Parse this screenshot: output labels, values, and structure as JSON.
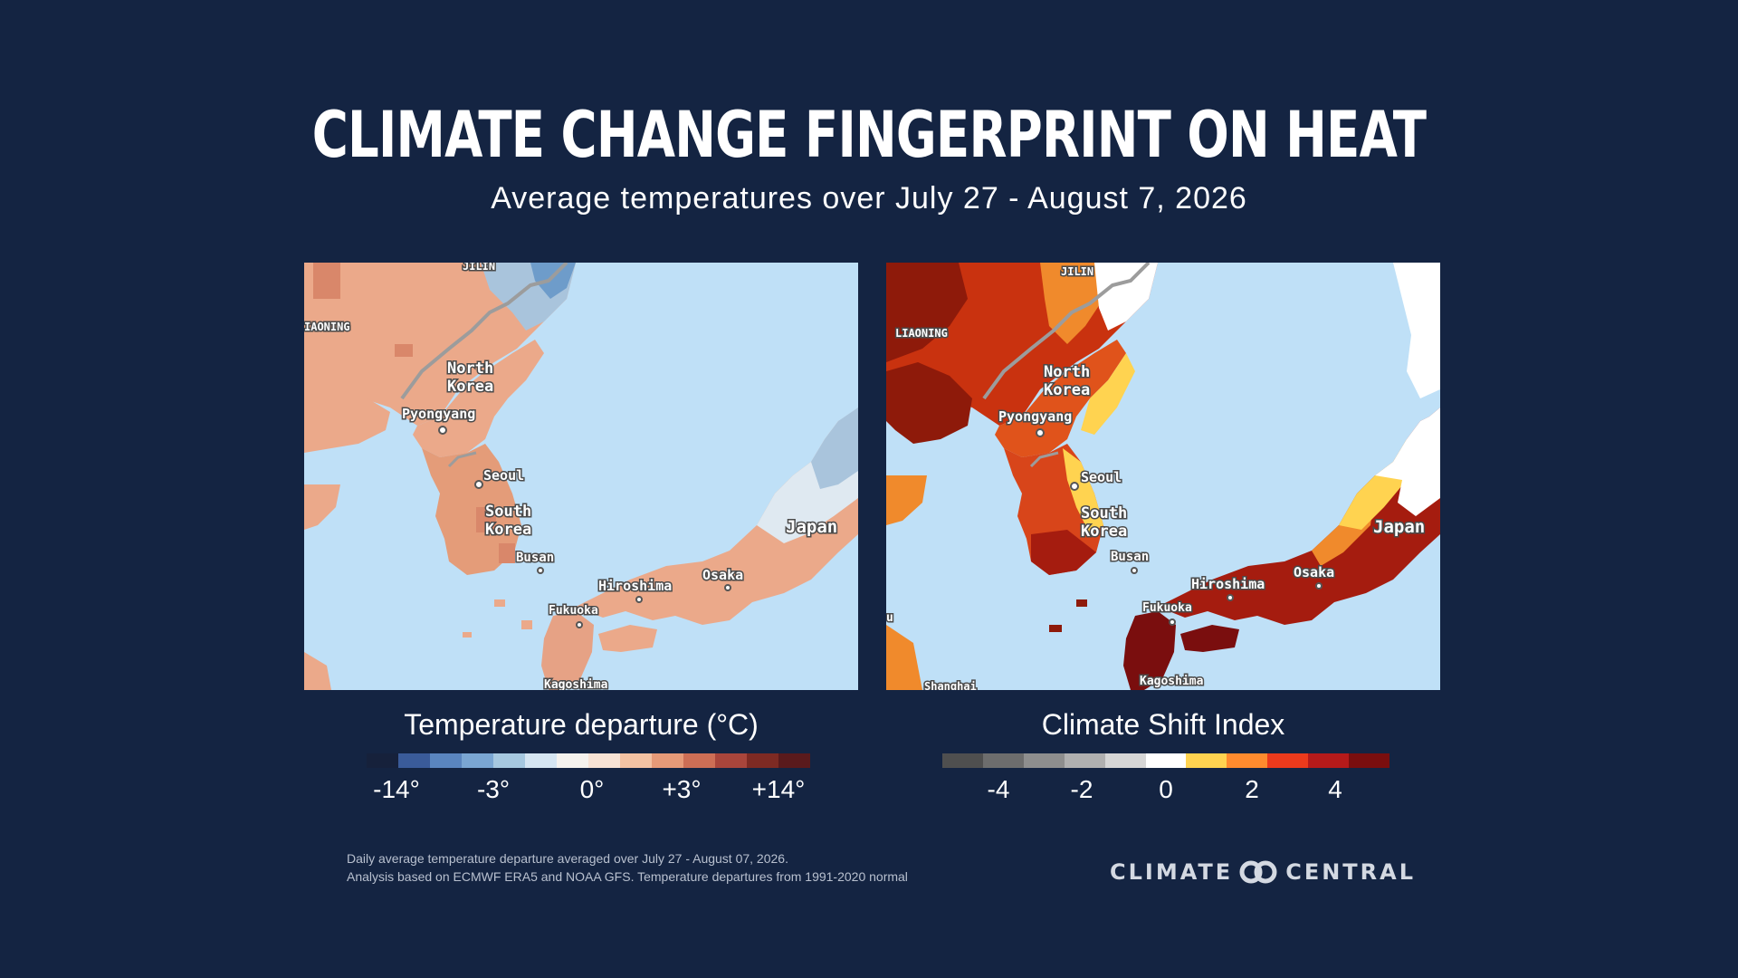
{
  "header": {
    "title": "CLIMATE CHANGE FINGERPRINT ON HEAT",
    "subtitle": "Average temperatures over July 27 - August 7, 2026"
  },
  "maps": {
    "left": {
      "labels": {
        "jilin": "JILIN",
        "liaoning": "IAONING",
        "north_korea_1": "North",
        "north_korea_2": "Korea",
        "pyongyang": "Pyongyang",
        "seoul": "Seoul",
        "south_korea_1": "South",
        "south_korea_2": "Korea",
        "busan": "Busan",
        "hiroshima": "Hiroshima",
        "osaka": "Osaka",
        "fukuoka": "Fukuoka",
        "kagoshima": "Kagoshima",
        "japan": "Japan"
      }
    },
    "right": {
      "labels": {
        "jilin": "JILIN",
        "liaoning": "LIAONING",
        "north_korea_1": "North",
        "north_korea_2": "Korea",
        "pyongyang": "Pyongyang",
        "seoul": "Seoul",
        "south_korea_1": "South",
        "south_korea_2": "Korea",
        "busan": "Busan",
        "hiroshima": "Hiroshima",
        "osaka": "Osaka",
        "fukuoka": "Fukuoka",
        "kagoshima": "Kagoshima",
        "japan": "Japan",
        "edge_u": "u",
        "shanghai": "Shanghai"
      }
    }
  },
  "legends": {
    "temperature": {
      "title": "Temperature departure (°C)",
      "ticks": [
        "-14°",
        "-3°",
        "0°",
        "+3°",
        "+14°"
      ],
      "colors": [
        "#16213b",
        "#3a5b99",
        "#5a85bf",
        "#7aa6d3",
        "#a6c8e0",
        "#d5e5f2",
        "#f5f2ee",
        "#f7e3d5",
        "#f3c2a3",
        "#e69a78",
        "#cd6e55",
        "#a9453b",
        "#7e2a23",
        "#5a1a1c"
      ]
    },
    "csi": {
      "title": "Climate Shift Index",
      "ticks": [
        "-4",
        "-2",
        "0",
        "2",
        "4"
      ],
      "colors": [
        "#4f4f4f",
        "#6d6d6d",
        "#8e8e8e",
        "#b0b0b0",
        "#d6d6d6",
        "#ffffff",
        "#ffd350",
        "#ff8b2e",
        "#ec3a1c",
        "#b51a1a",
        "#7a0e0e"
      ]
    }
  },
  "footnote": {
    "line1": "Daily average temperature departure averaged over July 27 - August 07, 2026.",
    "line2": "Analysis based on ECMWF ERA5 and NOAA GFS. Temperature departures from 1991-2020 normal"
  },
  "logo": {
    "left_word": "CLIMATE",
    "right_word": "CENTRAL"
  }
}
